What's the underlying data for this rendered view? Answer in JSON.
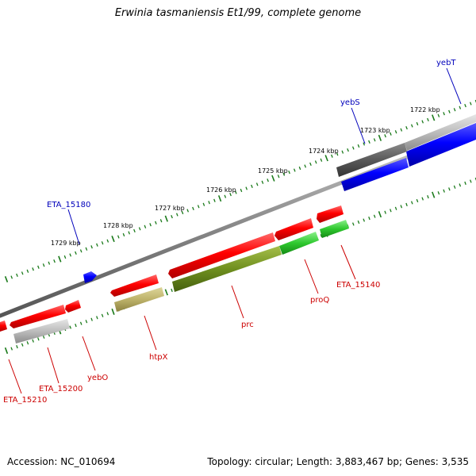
{
  "title": "Erwinia tasmaniensis Et1/99, complete genome",
  "footer": {
    "accession": "Accession: NC_010694",
    "summary": "Topology: circular; Length: 3,883,467 bp; Genes: 3,535"
  },
  "colors": {
    "backbone": "#8a8a8a",
    "forward_cds": "#ff0000",
    "reverse_cds": "#0000ff",
    "tick": "#1a7a1a",
    "label_forward": "#cc0000",
    "label_reverse": "#0000bb"
  },
  "scale_labels": [
    "1722 kbp",
    "1723 kbp",
    "1724 kbp",
    "1725 kbp",
    "1726 kbp",
    "1727 kbp",
    "1728 kbp",
    "1729 kbp"
  ],
  "gene_labels": {
    "yebT": "yebT",
    "yebS": "yebS",
    "ETA_15180": "ETA_15180",
    "ETA_15140": "ETA_15140",
    "proQ": "proQ",
    "prc": "prc",
    "htpX": "htpX",
    "yebO": "yebO",
    "ETA_15200": "ETA_15200",
    "ETA_15210": "ETA_15210"
  }
}
